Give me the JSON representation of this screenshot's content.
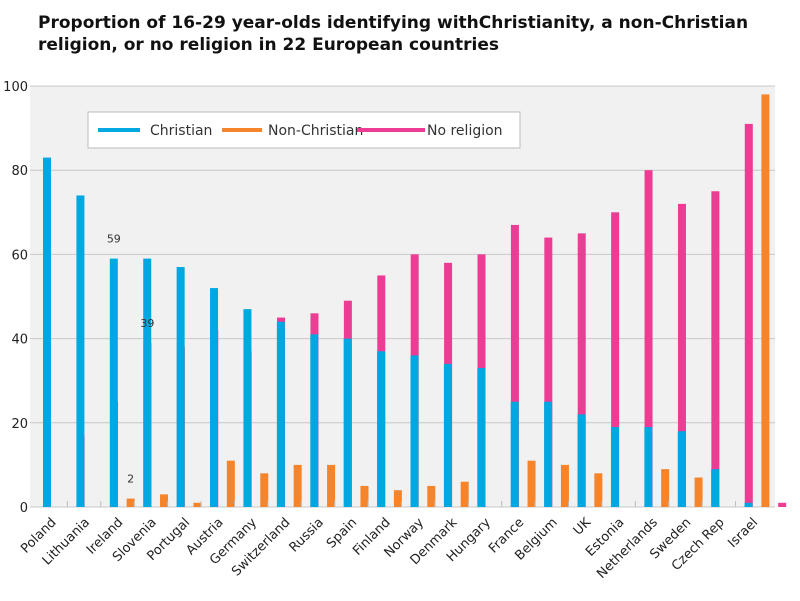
{
  "chart_data": {
    "type": "bar",
    "title": "Proportion of 16-29 year-olds identifying withChristianity, a non-Christian religion, or no religion in 22 European countries",
    "xlabel": "",
    "ylabel": "",
    "ylim": [
      0,
      100
    ],
    "yticks": [
      0,
      20,
      40,
      60,
      80,
      100
    ],
    "grid": true,
    "legend": "top-left",
    "categories": [
      "Poland",
      "Lithuania",
      "Ireland",
      "Slovenia",
      "Portugal",
      "Austria",
      "Germany",
      "Switzerland",
      "Russia",
      "Spain",
      "Finland",
      "Norway",
      "Denmark",
      "Hungary",
      "France",
      "Belgium",
      "UK",
      "Estonia",
      "Netherlands",
      "Sweden",
      "Czech Rep",
      "Israel"
    ],
    "series": [
      {
        "name": "Christian",
        "color": "#00a8e1",
        "values": [
          83,
          74,
          59,
          59,
          57,
          52,
          47,
          44,
          41,
          40,
          37,
          36,
          34,
          33,
          25,
          25,
          22,
          19,
          19,
          18,
          9,
          1
        ]
      },
      {
        "name": "Non-Christian",
        "color": "#f5842a",
        "values": [
          0,
          0,
          2,
          3,
          1,
          11,
          8,
          10,
          10,
          5,
          4,
          5,
          6,
          0,
          11,
          10,
          8,
          0,
          9,
          7,
          0,
          98
        ]
      },
      {
        "name": "No religion",
        "color": "#ec3c93",
        "values": [
          17,
          25,
          39,
          38,
          42,
          37,
          45,
          46,
          49,
          55,
          60,
          58,
          60,
          67,
          64,
          65,
          70,
          80,
          72,
          75,
          91,
          1
        ]
      }
    ],
    "annotations": [
      {
        "category": "Ireland",
        "series": "Christian",
        "text": "59"
      },
      {
        "category": "Ireland",
        "series": "No religion",
        "text": "39"
      },
      {
        "category": "Ireland",
        "series": "Non-Christian",
        "text": "2"
      }
    ]
  }
}
